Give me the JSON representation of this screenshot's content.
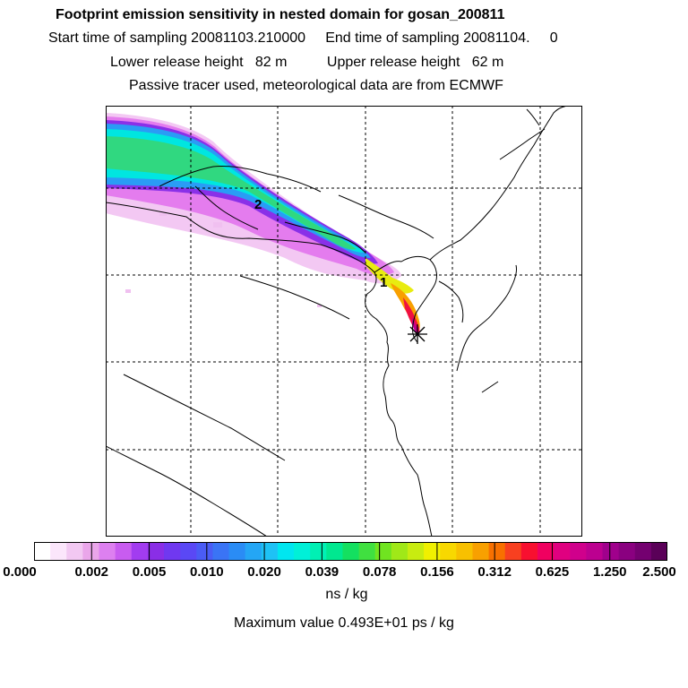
{
  "header": {
    "title": "Footprint emission sensitivity in nested domain for gosan_200811",
    "sampling_line": "Start time of sampling 20081103.210000     End time of sampling 20081104.     0",
    "release_line": "Lower release height   82 m          Upper release height   62 m",
    "tracer_line": "Passive tracer used, meteorological data are from ECMWF"
  },
  "map": {
    "labels": [
      "2",
      "1"
    ],
    "station_marker": "star-icon"
  },
  "colorbar": {
    "ticks": [
      "0.000",
      "0.002",
      "0.005",
      "0.010",
      "0.020",
      "0.039",
      "0.078",
      "0.156",
      "0.312",
      "0.625",
      "1.250",
      "2.500"
    ],
    "colors": [
      "#ffffff",
      "#fbe6fb",
      "#f2c8f2",
      "#eaa6ea",
      "#dd80f0",
      "#c85cf0",
      "#a23cf0",
      "#8a2ee6",
      "#7038f0",
      "#5a48f5",
      "#4a5cf5",
      "#3a74f5",
      "#2a8cf5",
      "#24a6f5",
      "#1ec2f5",
      "#00e6f0",
      "#00f0d8",
      "#00f0b4",
      "#00e890",
      "#14e060",
      "#40e040",
      "#70e420",
      "#a0e818",
      "#c8ec10",
      "#f0f000",
      "#f8d800",
      "#f8c000",
      "#f8a000",
      "#f87000",
      "#f84020",
      "#f81030",
      "#f00060",
      "#e00080",
      "#d0008c",
      "#bc0090",
      "#a0008c",
      "#8a0080",
      "#740070",
      "#5a0058"
    ],
    "units": "ns / kg",
    "max_value_text": "Maximum value  0.493E+01 ps / kg"
  }
}
